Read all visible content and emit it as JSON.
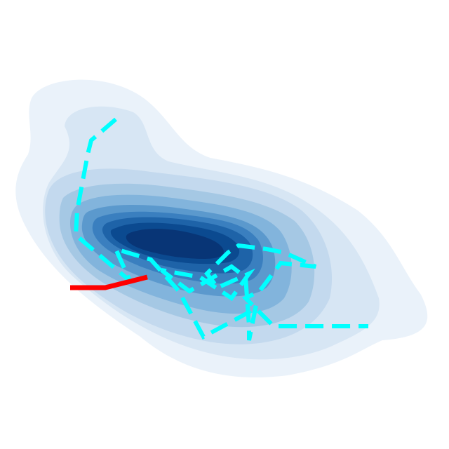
{
  "chart_data": {
    "type": "density-contour",
    "title": "",
    "xlabel": "",
    "ylabel": "",
    "axes_visible": false,
    "grid": false,
    "legend": "none",
    "colormap": "Blues",
    "density_levels": [
      {
        "level": 1,
        "color": "#eaf2fa"
      },
      {
        "level": 2,
        "color": "#d7e6f4"
      },
      {
        "level": 3,
        "color": "#c3d9ee"
      },
      {
        "level": 4,
        "color": "#a5c8e4"
      },
      {
        "level": 5,
        "color": "#82b4dc"
      },
      {
        "level": 6,
        "color": "#5b99cd"
      },
      {
        "level": 7,
        "color": "#3a7fbf"
      },
      {
        "level": 8,
        "color": "#1e63a8"
      },
      {
        "level": 9,
        "color": "#0b4a90"
      },
      {
        "level": 10,
        "color": "#083576"
      }
    ],
    "series": [
      {
        "style": "dashed",
        "color": "#00ffff",
        "points": [
          [
            16.5,
            47.0
          ],
          [
            13.0,
            44.0
          ],
          [
            12.5,
            42.0
          ],
          [
            11.0,
            34.0
          ],
          [
            10.8,
            30.5
          ],
          [
            15.5,
            26.5
          ],
          [
            18.5,
            24.0
          ],
          [
            16.5,
            28.5
          ],
          [
            21.5,
            27.0
          ],
          [
            25.5,
            22.5
          ],
          [
            29.0,
            16.0
          ],
          [
            35.5,
            19.5
          ],
          [
            36.5,
            20.5
          ],
          [
            35.5,
            15.5
          ],
          [
            35.5,
            17.5
          ],
          [
            35.0,
            24.5
          ],
          [
            33.0,
            26.0
          ],
          [
            27.0,
            22.5
          ],
          [
            23.0,
            25.5
          ],
          [
            28.5,
            24.5
          ],
          [
            33.0,
            21.5
          ],
          [
            35.5,
            25.0
          ],
          [
            31.0,
            23.0
          ],
          [
            29.5,
            25.0
          ],
          [
            32.5,
            28.0
          ],
          [
            34.0,
            29.0
          ],
          [
            38.0,
            28.5
          ],
          [
            40.5,
            28.0
          ],
          [
            45.0,
            26.0
          ],
          [
            40.0,
            26.5
          ],
          [
            37.0,
            22.5
          ],
          [
            35.0,
            21.5
          ],
          [
            39.0,
            17.5
          ],
          [
            46.0,
            17.5
          ],
          [
            52.5,
            17.5
          ]
        ]
      },
      {
        "style": "solid",
        "color": "#ff0000",
        "points": [
          [
            10.0,
            23.0
          ],
          [
            15.0,
            23.0
          ],
          [
            21.0,
            24.5
          ]
        ]
      }
    ],
    "xlim": [
      0,
      64
    ],
    "ylim": [
      0,
      64
    ]
  }
}
